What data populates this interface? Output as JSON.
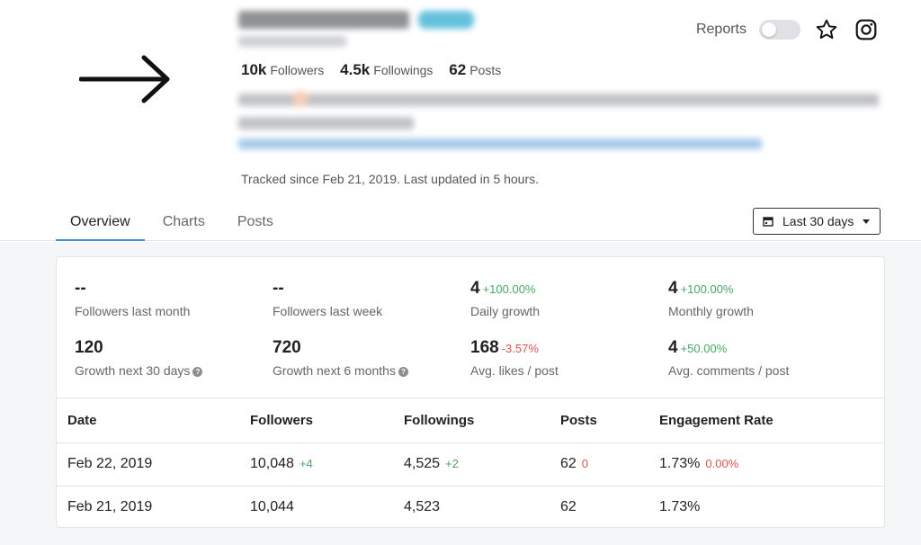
{
  "profile": {
    "stats": [
      {
        "value": "10k",
        "label": "Followers"
      },
      {
        "value": "4.5k",
        "label": "Followings"
      },
      {
        "value": "62",
        "label": "Posts"
      }
    ],
    "tracked": "Tracked since Feb 21, 2019. Last updated in 5 hours."
  },
  "actions": {
    "reports_label": "Reports",
    "reports_enabled": false,
    "star_icon": "star-outline-icon",
    "instagram_icon": "instagram-icon"
  },
  "tabs": [
    {
      "label": "Overview",
      "active": true
    },
    {
      "label": "Charts",
      "active": false
    },
    {
      "label": "Posts",
      "active": false
    }
  ],
  "range": {
    "label": "Last 30 days",
    "icon": "calendar-icon"
  },
  "metrics": [
    {
      "value": "--",
      "change": "",
      "label": "Followers last month"
    },
    {
      "value": "--",
      "change": "",
      "label": "Followers last week"
    },
    {
      "value": "4",
      "change": "+100.00%",
      "label": "Daily growth"
    },
    {
      "value": "4",
      "change": "+100.00%",
      "label": "Monthly growth"
    },
    {
      "value": "120",
      "change": "",
      "label": "Growth next 30 days"
    },
    {
      "value": "720",
      "change": "",
      "label": "Growth next 6 months"
    },
    {
      "value": "168",
      "change": "-3.57%",
      "label": "Avg. likes / post"
    },
    {
      "value": "4",
      "change": "+50.00%",
      "label": "Avg. comments / post"
    }
  ],
  "table": {
    "headers": [
      "Date",
      "Followers",
      "Followings",
      "Posts",
      "Engagement Rate"
    ],
    "rows": [
      {
        "date": "Feb 22, 2019",
        "followers": "10,048",
        "followers_delta": "+4",
        "followings": "4,525",
        "followings_delta": "+2",
        "posts": "62",
        "posts_delta": "0",
        "engagement": "1.73%",
        "engagement_delta": "0.00%"
      },
      {
        "date": "Feb 21, 2019",
        "followers": "10,044",
        "followers_delta": "",
        "followings": "4,523",
        "followings_delta": "",
        "posts": "62",
        "posts_delta": "",
        "engagement": "1.73%",
        "engagement_delta": ""
      }
    ]
  },
  "colors": {
    "accent": "#3d8fd6",
    "positive": "#4aa564",
    "negative": "#d9534f"
  }
}
